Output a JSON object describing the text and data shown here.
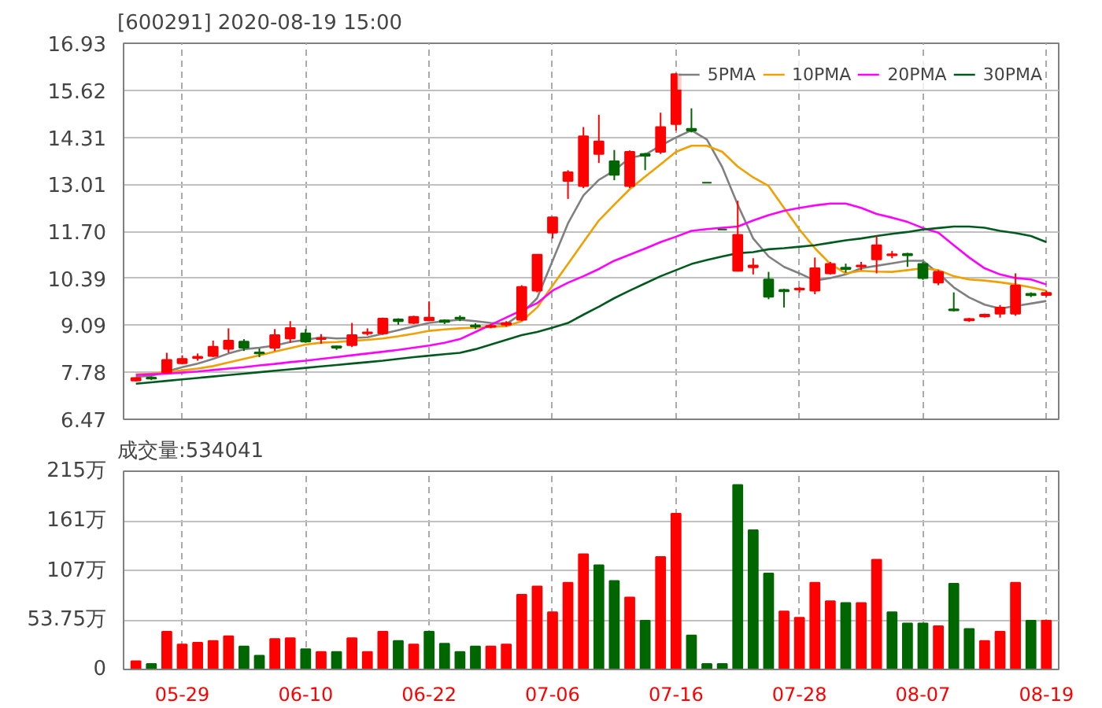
{
  "chart_data": [
    {
      "type": "candlestick",
      "title": "[600291] 2020-08-19 15:00",
      "categories": [
        null,
        null,
        null,
        null,
        null,
        null,
        null,
        null,
        null,
        null,
        null,
        null,
        null,
        null,
        null,
        null,
        null,
        null,
        null,
        null,
        null,
        null,
        null,
        null,
        null,
        null,
        null,
        null,
        null,
        null,
        null,
        null,
        null,
        null,
        null,
        null,
        null,
        null,
        null,
        null,
        null,
        null,
        null,
        null,
        null,
        null,
        null,
        null,
        null,
        null,
        null,
        null,
        null,
        null,
        null,
        null,
        null,
        null,
        null,
        null
      ],
      "ohlc": [
        [
          7.55,
          7.64,
          7.52,
          7.62
        ],
        [
          7.63,
          7.66,
          7.56,
          7.6
        ],
        [
          7.77,
          8.32,
          7.75,
          8.12
        ],
        [
          8.03,
          8.25,
          8.0,
          8.15
        ],
        [
          8.17,
          8.3,
          8.1,
          8.21
        ],
        [
          8.23,
          8.66,
          8.2,
          8.49
        ],
        [
          8.43,
          9.0,
          8.32,
          8.66
        ],
        [
          8.63,
          8.7,
          8.37,
          8.46
        ],
        [
          8.33,
          8.44,
          8.2,
          8.3
        ],
        [
          8.46,
          8.98,
          8.37,
          8.81
        ],
        [
          8.72,
          9.2,
          8.6,
          9.01
        ],
        [
          8.86,
          8.98,
          8.6,
          8.63
        ],
        [
          8.7,
          8.84,
          8.57,
          8.72
        ],
        [
          8.5,
          8.52,
          8.4,
          8.46
        ],
        [
          8.53,
          9.15,
          8.48,
          8.81
        ],
        [
          8.86,
          9.0,
          8.8,
          8.89
        ],
        [
          8.86,
          9.3,
          8.82,
          9.27
        ],
        [
          9.25,
          9.28,
          9.1,
          9.2
        ],
        [
          9.15,
          9.35,
          9.12,
          9.32
        ],
        [
          9.22,
          9.75,
          9.2,
          9.3
        ],
        [
          9.22,
          9.25,
          9.12,
          9.18
        ],
        [
          9.3,
          9.36,
          9.2,
          9.27
        ],
        [
          9.08,
          9.14,
          8.98,
          9.05
        ],
        [
          9.04,
          9.12,
          9.0,
          9.07
        ],
        [
          9.1,
          9.2,
          9.05,
          9.15
        ],
        [
          9.24,
          10.2,
          9.2,
          10.15
        ],
        [
          10.05,
          11.05,
          10.0,
          11.05
        ],
        [
          11.66,
          12.09,
          11.5,
          12.09
        ],
        [
          13.1,
          13.4,
          12.6,
          13.34
        ],
        [
          12.96,
          14.6,
          12.9,
          14.34
        ],
        [
          13.85,
          14.94,
          13.6,
          14.2
        ],
        [
          13.65,
          13.96,
          13.12,
          13.27
        ],
        [
          12.96,
          13.95,
          12.9,
          13.91
        ],
        [
          13.85,
          13.88,
          13.4,
          13.8
        ],
        [
          13.91,
          15.0,
          13.85,
          14.6
        ],
        [
          14.68,
          16.1,
          14.5,
          16.07
        ],
        [
          14.55,
          15.12,
          14.45,
          14.5
        ],
        [
          13.05,
          13.05,
          13.05,
          13.05
        ],
        [
          11.75,
          11.75,
          11.75,
          11.75
        ],
        [
          10.6,
          12.55,
          10.58,
          11.6
        ],
        [
          10.7,
          10.95,
          10.5,
          10.75
        ],
        [
          10.36,
          10.57,
          9.81,
          9.88
        ],
        [
          10.07,
          10.1,
          9.58,
          10.03
        ],
        [
          10.08,
          10.15,
          10.0,
          10.11
        ],
        [
          10.05,
          10.97,
          9.95,
          10.67
        ],
        [
          10.53,
          10.85,
          10.5,
          10.79
        ],
        [
          10.69,
          10.8,
          10.55,
          10.65
        ],
        [
          10.72,
          10.85,
          10.62,
          10.75
        ],
        [
          10.92,
          11.57,
          10.53,
          11.31
        ],
        [
          11.03,
          11.15,
          10.95,
          11.06
        ],
        [
          11.07,
          11.1,
          10.71,
          11.03
        ],
        [
          10.79,
          10.85,
          10.35,
          10.4
        ],
        [
          10.27,
          10.62,
          10.2,
          10.57
        ],
        [
          9.53,
          10.0,
          9.47,
          9.5
        ],
        [
          9.22,
          9.29,
          9.18,
          9.26
        ],
        [
          9.33,
          9.41,
          9.3,
          9.38
        ],
        [
          9.41,
          9.65,
          9.3,
          9.58
        ],
        [
          9.41,
          10.53,
          9.35,
          10.19
        ],
        [
          9.96,
          10.0,
          9.87,
          9.92
        ],
        [
          9.93,
          10.05,
          9.88,
          9.99
        ]
      ],
      "colors": [
        "#ff0000",
        "#006600",
        "#ff0000",
        "#ff0000",
        "#ff0000",
        "#ff0000",
        "#ff0000",
        "#006600",
        "#006600",
        "#ff0000",
        "#ff0000",
        "#006600",
        "#ff0000",
        "#006600",
        "#ff0000",
        "#ff0000",
        "#ff0000",
        "#006600",
        "#ff0000",
        "#ff0000",
        "#006600",
        "#006600",
        "#006600",
        "#ff0000",
        "#ff0000",
        "#ff0000",
        "#ff0000",
        "#ff0000",
        "#ff0000",
        "#ff0000",
        "#ff0000",
        "#006600",
        "#ff0000",
        "#006600",
        "#ff0000",
        "#ff0000",
        "#006600",
        "#006600",
        "#006600",
        "#ff0000",
        "#ff0000",
        "#006600",
        "#006600",
        "#ff0000",
        "#ff0000",
        "#ff0000",
        "#006600",
        "#ff0000",
        "#ff0000",
        "#ff0000",
        "#006600",
        "#006600",
        "#ff0000",
        "#006600",
        "#ff0000",
        "#ff0000",
        "#ff0000",
        "#ff0000",
        "#006600",
        "#ff0000"
      ],
      "series": [
        {
          "name": "5PMA",
          "type": "line",
          "color": "#808080",
          "values": [
            7.65,
            7.68,
            7.8,
            7.92,
            8.02,
            8.15,
            8.3,
            8.42,
            8.46,
            8.52,
            8.62,
            8.68,
            8.75,
            8.72,
            8.73,
            8.75,
            8.85,
            8.95,
            9.05,
            9.15,
            9.2,
            9.24,
            9.2,
            9.15,
            9.12,
            9.41,
            9.84,
            10.88,
            11.92,
            12.7,
            13.13,
            13.39,
            13.74,
            13.83,
            14.08,
            14.31,
            14.51,
            14.25,
            13.48,
            12.44,
            11.5,
            11.0,
            10.71,
            10.53,
            10.33,
            10.4,
            10.5,
            10.67,
            10.74,
            10.81,
            10.88,
            10.88,
            10.53,
            10.14,
            9.86,
            9.66,
            9.55,
            9.62,
            9.69,
            9.76
          ]
        },
        {
          "name": "10PMA",
          "type": "line",
          "color": "#f0a000",
          "values": [
            7.72,
            7.74,
            7.78,
            7.83,
            7.88,
            7.95,
            8.05,
            8.15,
            8.25,
            8.35,
            8.45,
            8.55,
            8.6,
            8.62,
            8.65,
            8.68,
            8.72,
            8.78,
            8.85,
            8.93,
            8.97,
            9.0,
            9.02,
            9.04,
            9.06,
            9.2,
            9.58,
            10.19,
            10.79,
            11.4,
            12.0,
            12.44,
            12.87,
            13.22,
            13.56,
            13.91,
            14.08,
            14.08,
            13.91,
            13.5,
            13.2,
            12.96,
            12.35,
            11.75,
            11.23,
            10.79,
            10.53,
            10.6,
            10.58,
            10.57,
            10.62,
            10.67,
            10.62,
            10.45,
            10.36,
            10.33,
            10.28,
            10.22,
            10.14,
            10.05
          ]
        },
        {
          "name": "20PMA",
          "type": "line",
          "color": "#ff00ff",
          "values": [
            7.7,
            7.72,
            7.74,
            7.77,
            7.8,
            7.84,
            7.88,
            7.92,
            7.97,
            8.01,
            8.06,
            8.1,
            8.15,
            8.2,
            8.25,
            8.3,
            8.35,
            8.4,
            8.46,
            8.52,
            8.6,
            8.7,
            8.9,
            9.1,
            9.3,
            9.5,
            9.7,
            10.05,
            10.27,
            10.45,
            10.65,
            10.88,
            11.05,
            11.22,
            11.4,
            11.55,
            11.71,
            11.76,
            11.8,
            11.83,
            12.0,
            12.15,
            12.27,
            12.35,
            12.42,
            12.47,
            12.47,
            12.35,
            12.18,
            12.08,
            11.96,
            11.79,
            11.66,
            11.31,
            10.97,
            10.67,
            10.5,
            10.4,
            10.36,
            10.22
          ]
        },
        {
          "name": "30PMA",
          "type": "line",
          "color": "#005a1e",
          "values": [
            7.46,
            7.5,
            7.54,
            7.58,
            7.62,
            7.66,
            7.7,
            7.74,
            7.78,
            7.82,
            7.86,
            7.9,
            7.94,
            7.98,
            8.02,
            8.06,
            8.1,
            8.15,
            8.2,
            8.24,
            8.28,
            8.32,
            8.42,
            8.55,
            8.68,
            8.81,
            8.9,
            9.02,
            9.15,
            9.38,
            9.6,
            9.84,
            10.05,
            10.25,
            10.45,
            10.62,
            10.79,
            10.9,
            11.0,
            11.09,
            11.12,
            11.2,
            11.23,
            11.27,
            11.31,
            11.38,
            11.45,
            11.5,
            11.57,
            11.63,
            11.68,
            11.75,
            11.79,
            11.83,
            11.83,
            11.8,
            11.71,
            11.65,
            11.57,
            11.4
          ]
        }
      ],
      "ylim": [
        6.47,
        16.93
      ],
      "yticks": [
        6.47,
        7.78,
        9.09,
        10.39,
        {
          "value": 11.7,
          "label": "11.70"
        },
        13.01,
        14.31,
        15.62,
        16.93
      ],
      "grid": true,
      "legend": "top right",
      "tick_labels": "y",
      "marker": "none",
      "line_style": "solid"
    },
    {
      "type": "bar",
      "title": "成交量:534041",
      "categories": [
        null,
        null,
        null,
        "05-29",
        null,
        null,
        null,
        null,
        null,
        null,
        null,
        "06-10",
        null,
        null,
        null,
        null,
        null,
        null,
        null,
        "06-22",
        null,
        null,
        null,
        null,
        null,
        null,
        null,
        "07-06",
        null,
        null,
        null,
        null,
        null,
        null,
        null,
        "07-16",
        null,
        null,
        null,
        null,
        null,
        null,
        null,
        "07-28",
        null,
        null,
        null,
        null,
        null,
        null,
        null,
        "08-07",
        null,
        null,
        null,
        null,
        null,
        null,
        null,
        "08-19"
      ],
      "values": [
        9,
        6,
        41,
        27,
        29,
        31,
        36,
        25,
        15,
        33,
        34,
        22,
        19,
        19,
        34,
        19,
        41,
        31,
        27,
        41,
        28,
        19,
        25,
        25,
        27,
        81,
        90,
        62,
        94,
        125,
        113,
        96,
        78,
        53,
        122,
        169,
        37,
        6,
        6,
        200,
        151,
        104,
        63,
        56,
        94,
        74,
        72,
        72,
        119,
        62,
        50,
        50,
        47,
        93,
        44,
        31,
        41,
        94,
        53,
        53
      ],
      "colors": [
        "#ff0000",
        "#006600",
        "#ff0000",
        "#ff0000",
        "#ff0000",
        "#ff0000",
        "#ff0000",
        "#006600",
        "#006600",
        "#ff0000",
        "#ff0000",
        "#006600",
        "#ff0000",
        "#006600",
        "#ff0000",
        "#ff0000",
        "#ff0000",
        "#006600",
        "#ff0000",
        "#006600",
        "#006600",
        "#006600",
        "#006600",
        "#ff0000",
        "#ff0000",
        "#ff0000",
        "#ff0000",
        "#ff0000",
        "#ff0000",
        "#ff0000",
        "#006600",
        "#006600",
        "#ff0000",
        "#006600",
        "#ff0000",
        "#ff0000",
        "#006600",
        "#006600",
        "#006600",
        "#006600",
        "#006600",
        "#006600",
        "#ff0000",
        "#ff0000",
        "#ff0000",
        "#ff0000",
        "#006600",
        "#ff0000",
        "#ff0000",
        "#006600",
        "#006600",
        "#006600",
        "#ff0000",
        "#006600",
        "#006600",
        "#ff0000",
        "#ff0000",
        "#ff0000",
        "#006600",
        "#ff0000"
      ],
      "ylim": [
        0,
        215
      ],
      "yticks": [
        0,
        {
          "value": 53.75,
          "label": "53.75万"
        },
        {
          "value": 107,
          "label": "107万"
        },
        {
          "value": 161,
          "label": "161万"
        },
        {
          "value": 215,
          "label": "215万"
        }
      ],
      "grid": true
    }
  ]
}
